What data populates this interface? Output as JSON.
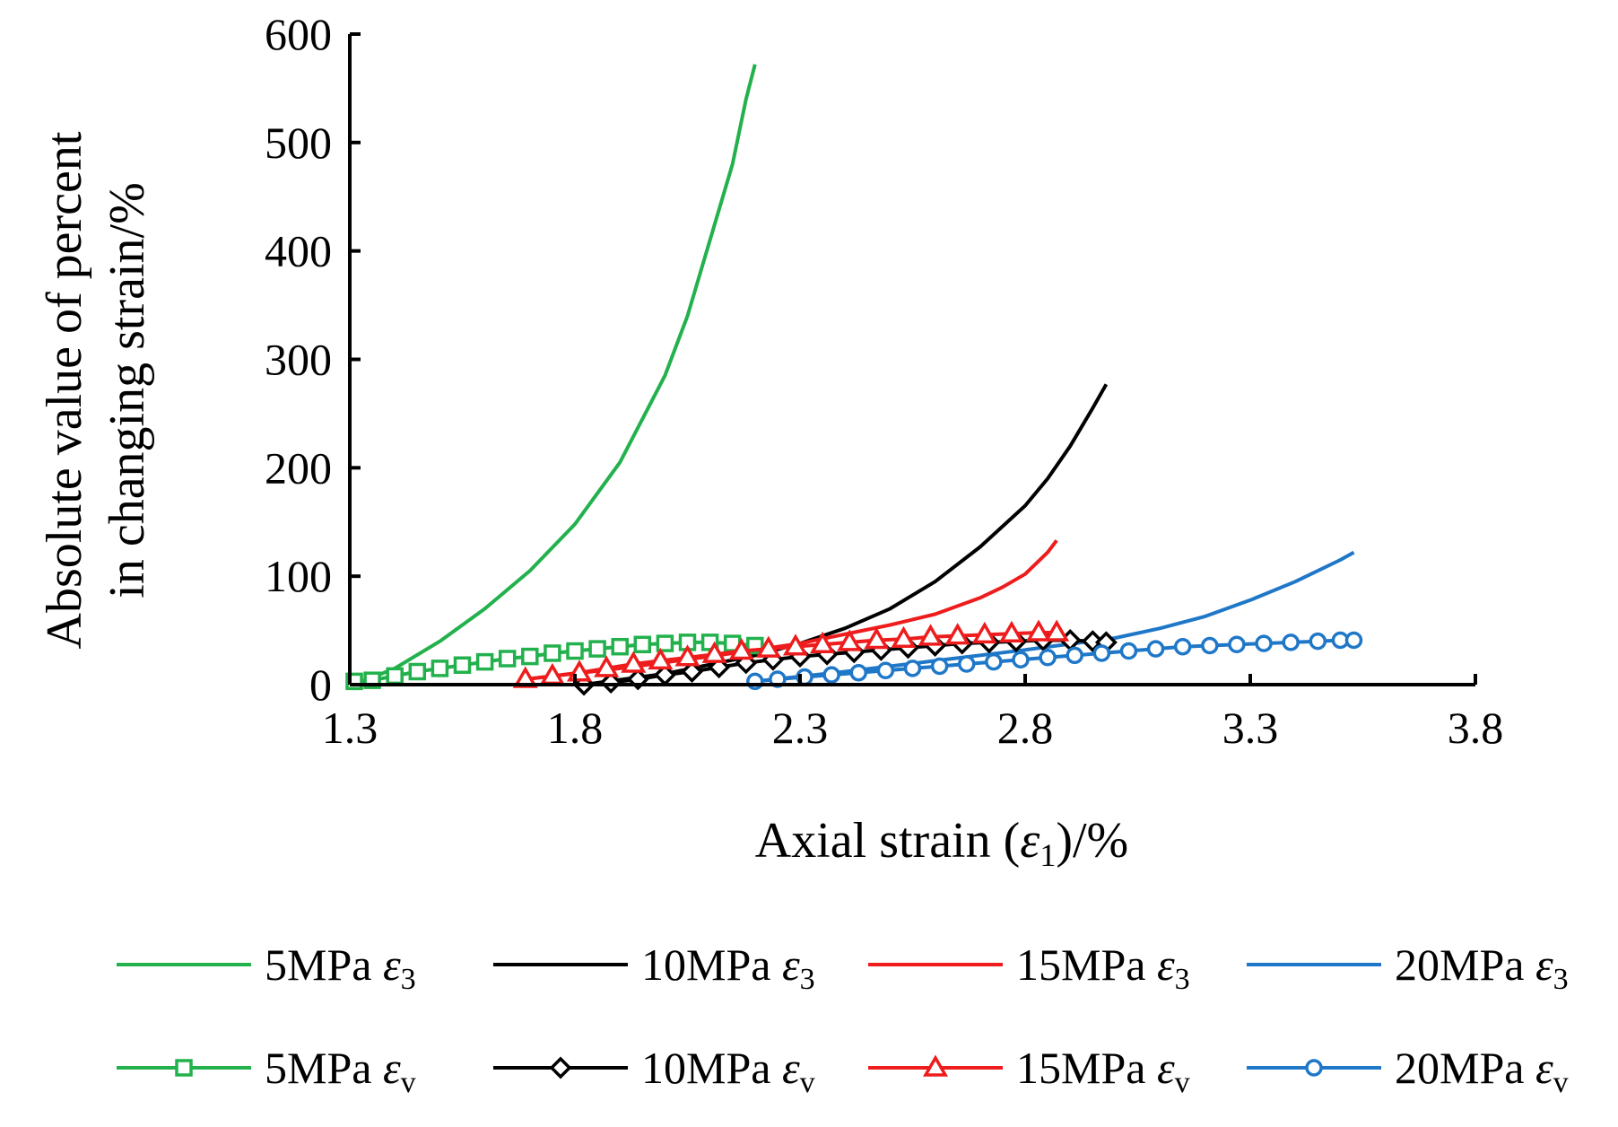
{
  "chart_data": {
    "type": "line",
    "xlabel": "Axial strain (ε1)/%",
    "xlabel_parts": {
      "prefix": "Axial strain (",
      "symbol": "ε",
      "subscript": "1",
      "suffix": ")/%"
    },
    "ylabel_lines": [
      "Absolute value of percent",
      "in changing strain/%"
    ],
    "xlim": [
      1.3,
      3.8
    ],
    "ylim": [
      0,
      600
    ],
    "xticks": [
      "1.3",
      "1.8",
      "2.3",
      "2.8",
      "3.3",
      "3.8"
    ],
    "yticks": [
      "0",
      "100",
      "200",
      "300",
      "400",
      "500",
      "600"
    ],
    "grid": false,
    "legend_position": "bottom",
    "series": [
      {
        "name": "5MPa ε3",
        "name_parts": {
          "prefix": "5MPa ",
          "symbol": "ε",
          "subscript": "3"
        },
        "color": "#22b14c",
        "marker": "none",
        "points": [
          [
            1.31,
            0
          ],
          [
            1.4,
            15
          ],
          [
            1.5,
            40
          ],
          [
            1.6,
            70
          ],
          [
            1.7,
            105
          ],
          [
            1.8,
            148
          ],
          [
            1.9,
            205
          ],
          [
            2.0,
            285
          ],
          [
            2.05,
            340
          ],
          [
            2.1,
            410
          ],
          [
            2.15,
            480
          ],
          [
            2.18,
            540
          ],
          [
            2.2,
            572
          ]
        ]
      },
      {
        "name": "10MPa ε3",
        "name_parts": {
          "prefix": "10MPa ",
          "symbol": "ε",
          "subscript": "3"
        },
        "color": "#000000",
        "marker": "none",
        "points": [
          [
            1.82,
            0
          ],
          [
            2.0,
            10
          ],
          [
            2.2,
            27
          ],
          [
            2.3,
            38
          ],
          [
            2.4,
            52
          ],
          [
            2.5,
            70
          ],
          [
            2.6,
            95
          ],
          [
            2.7,
            127
          ],
          [
            2.8,
            165
          ],
          [
            2.85,
            190
          ],
          [
            2.9,
            220
          ],
          [
            2.95,
            255
          ],
          [
            2.98,
            277
          ]
        ]
      },
      {
        "name": "15MPa ε3",
        "name_parts": {
          "prefix": "15MPa ",
          "symbol": "ε",
          "subscript": "3"
        },
        "color": "#ee1c1c",
        "marker": "none",
        "points": [
          [
            1.69,
            5
          ],
          [
            1.9,
            15
          ],
          [
            2.1,
            26
          ],
          [
            2.3,
            38
          ],
          [
            2.5,
            55
          ],
          [
            2.6,
            65
          ],
          [
            2.7,
            80
          ],
          [
            2.75,
            90
          ],
          [
            2.8,
            102
          ],
          [
            2.85,
            122
          ],
          [
            2.87,
            133
          ]
        ]
      },
      {
        "name": "20MPa ε3",
        "name_parts": {
          "prefix": "20MPa ",
          "symbol": "ε",
          "subscript": "3"
        },
        "color": "#1f77c8",
        "marker": "none",
        "points": [
          [
            2.2,
            3
          ],
          [
            2.4,
            12
          ],
          [
            2.6,
            22
          ],
          [
            2.8,
            32
          ],
          [
            3.0,
            43
          ],
          [
            3.1,
            52
          ],
          [
            3.2,
            63
          ],
          [
            3.3,
            78
          ],
          [
            3.4,
            95
          ],
          [
            3.5,
            115
          ],
          [
            3.53,
            122
          ]
        ]
      },
      {
        "name": "5MPa εv",
        "name_parts": {
          "prefix": "5MPa ",
          "symbol": "ε",
          "subscript": "v"
        },
        "color": "#22b14c",
        "marker": "square",
        "points": [
          [
            1.31,
            3
          ],
          [
            1.35,
            4
          ],
          [
            1.4,
            8
          ],
          [
            1.45,
            12
          ],
          [
            1.5,
            15
          ],
          [
            1.55,
            18
          ],
          [
            1.6,
            21
          ],
          [
            1.65,
            24
          ],
          [
            1.7,
            26
          ],
          [
            1.75,
            29
          ],
          [
            1.8,
            31
          ],
          [
            1.85,
            33
          ],
          [
            1.9,
            35
          ],
          [
            1.95,
            37
          ],
          [
            2.0,
            38
          ],
          [
            2.05,
            39
          ],
          [
            2.1,
            39
          ],
          [
            2.15,
            38
          ],
          [
            2.2,
            36
          ]
        ]
      },
      {
        "name": "10MPa εv",
        "name_parts": {
          "prefix": "10MPa ",
          "symbol": "ε",
          "subscript": "v"
        },
        "color": "#000000",
        "marker": "diamond",
        "points": [
          [
            1.82,
            0
          ],
          [
            1.88,
            2
          ],
          [
            1.94,
            5
          ],
          [
            2.0,
            9
          ],
          [
            2.06,
            12
          ],
          [
            2.12,
            16
          ],
          [
            2.18,
            20
          ],
          [
            2.24,
            23
          ],
          [
            2.3,
            26
          ],
          [
            2.36,
            28
          ],
          [
            2.42,
            30
          ],
          [
            2.48,
            32
          ],
          [
            2.54,
            34
          ],
          [
            2.6,
            36
          ],
          [
            2.66,
            38
          ],
          [
            2.72,
            39
          ],
          [
            2.78,
            40
          ],
          [
            2.84,
            41
          ],
          [
            2.9,
            41
          ],
          [
            2.95,
            40
          ],
          [
            2.98,
            39
          ]
        ]
      },
      {
        "name": "15MPa εv",
        "name_parts": {
          "prefix": "15MPa ",
          "symbol": "ε",
          "subscript": "v"
        },
        "color": "#ee1c1c",
        "marker": "triangle",
        "points": [
          [
            1.69,
            5
          ],
          [
            1.75,
            8
          ],
          [
            1.81,
            11
          ],
          [
            1.87,
            15
          ],
          [
            1.93,
            19
          ],
          [
            1.99,
            22
          ],
          [
            2.05,
            25
          ],
          [
            2.11,
            28
          ],
          [
            2.17,
            31
          ],
          [
            2.23,
            33
          ],
          [
            2.29,
            35
          ],
          [
            2.35,
            37
          ],
          [
            2.41,
            39
          ],
          [
            2.47,
            41
          ],
          [
            2.53,
            42
          ],
          [
            2.59,
            44
          ],
          [
            2.65,
            45
          ],
          [
            2.71,
            46
          ],
          [
            2.77,
            47
          ],
          [
            2.83,
            48
          ],
          [
            2.87,
            48
          ]
        ]
      },
      {
        "name": "20MPa εv",
        "name_parts": {
          "prefix": "20MPa ",
          "symbol": "ε",
          "subscript": "v"
        },
        "color": "#1f77c8",
        "marker": "circle",
        "points": [
          [
            2.2,
            3
          ],
          [
            2.25,
            5
          ],
          [
            2.31,
            7
          ],
          [
            2.37,
            9
          ],
          [
            2.43,
            11
          ],
          [
            2.49,
            13
          ],
          [
            2.55,
            15
          ],
          [
            2.61,
            17
          ],
          [
            2.67,
            19
          ],
          [
            2.73,
            21
          ],
          [
            2.79,
            23
          ],
          [
            2.85,
            25
          ],
          [
            2.91,
            27
          ],
          [
            2.97,
            29
          ],
          [
            3.03,
            31
          ],
          [
            3.09,
            33
          ],
          [
            3.15,
            35
          ],
          [
            3.21,
            36
          ],
          [
            3.27,
            37
          ],
          [
            3.33,
            38
          ],
          [
            3.39,
            39
          ],
          [
            3.45,
            40
          ],
          [
            3.5,
            41
          ],
          [
            3.53,
            41
          ]
        ]
      }
    ]
  }
}
